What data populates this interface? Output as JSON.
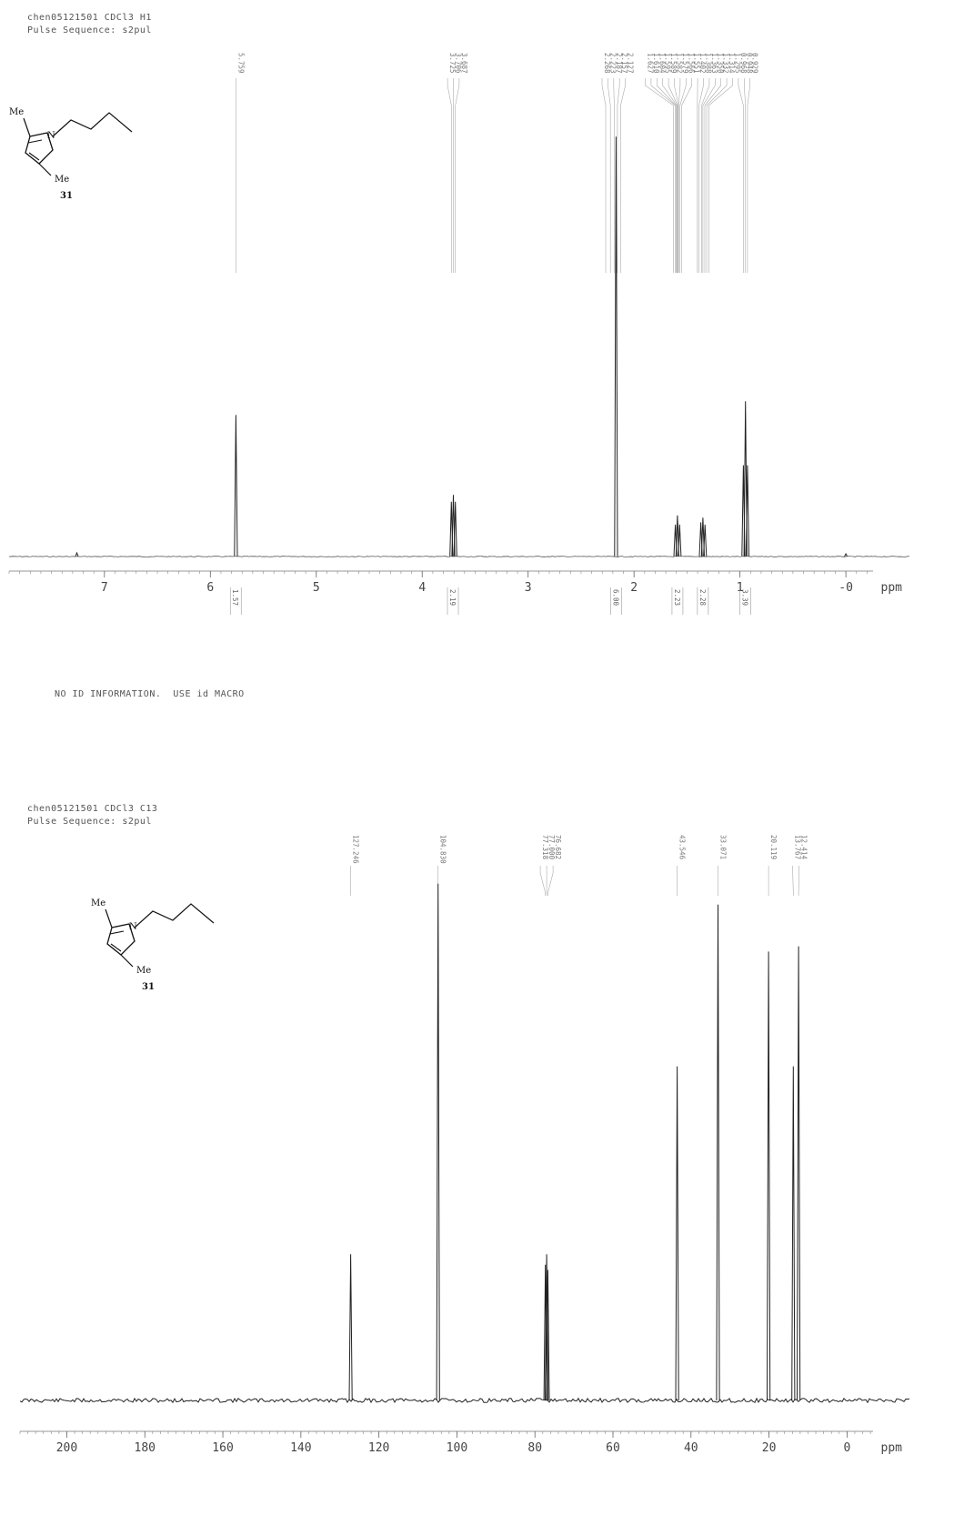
{
  "chart_data": [
    {
      "type": "line",
      "header": {
        "sample_line": "chen05121501 CDCl3 H1",
        "pulse_line": "Pulse Sequence: s2pul"
      },
      "xlabel": "ppm",
      "xlim": [
        7.9,
        -0.6
      ],
      "x_ticks": [
        "7",
        "6",
        "5",
        "4",
        "3",
        "2",
        "1",
        "-0"
      ],
      "x_tick_values": [
        7,
        6,
        5,
        4,
        3,
        2,
        1,
        0
      ],
      "peak_labels": [
        "5.759",
        "3.725",
        "3.706",
        "3.687",
        "2.268",
        "2.223",
        "2.187",
        "2.157",
        "2.127",
        "1.627",
        "1.610",
        "1.604",
        "1.595",
        "1.589",
        "1.582",
        "1.579",
        "1.566",
        "1.551",
        "1.402",
        "1.388",
        "1.363",
        "1.350",
        "1.332",
        "1.314",
        "1.295",
        "0.968",
        "0.948",
        "0.929"
      ],
      "integrals": [
        {
          "x": 5.76,
          "label": "1.57"
        },
        {
          "x": 3.71,
          "label": "2.19"
        },
        {
          "x": 2.17,
          "label": "6.00"
        },
        {
          "x": 1.59,
          "label": "2.23"
        },
        {
          "x": 1.35,
          "label": "2.28"
        },
        {
          "x": 0.95,
          "label": "3.39"
        }
      ],
      "peaks": [
        {
          "x": 7.26,
          "h": 0.008
        },
        {
          "x": 5.759,
          "h": 0.31
        },
        {
          "x": 3.725,
          "h": 0.12
        },
        {
          "x": 3.706,
          "h": 0.135
        },
        {
          "x": 3.687,
          "h": 0.12
        },
        {
          "x": 2.17,
          "h": 0.92
        },
        {
          "x": 1.61,
          "h": 0.07
        },
        {
          "x": 1.59,
          "h": 0.09
        },
        {
          "x": 1.57,
          "h": 0.07
        },
        {
          "x": 1.37,
          "h": 0.075
        },
        {
          "x": 1.35,
          "h": 0.085
        },
        {
          "x": 1.33,
          "h": 0.07
        },
        {
          "x": 0.968,
          "h": 0.2
        },
        {
          "x": 0.948,
          "h": 0.34
        },
        {
          "x": 0.929,
          "h": 0.2
        },
        {
          "x": 0.0,
          "h": 0.006
        }
      ],
      "molecule": {
        "substituent_top": "Me",
        "substituent_bottom": "Me",
        "heteroatom": "N",
        "compound_number": "31"
      },
      "footer_note": "NO ID INFORMATION.  USE id MACRO"
    },
    {
      "type": "line",
      "header": {
        "sample_line": "chen05121501 CDCl3 C13",
        "pulse_line": "Pulse Sequence: s2pul"
      },
      "xlabel": "ppm",
      "xlim": [
        212,
        -16
      ],
      "x_ticks": [
        "200",
        "180",
        "160",
        "140",
        "120",
        "100",
        "80",
        "60",
        "40",
        "20",
        "0"
      ],
      "x_tick_values": [
        200,
        180,
        160,
        140,
        120,
        100,
        80,
        60,
        40,
        20,
        0
      ],
      "peak_labels": [
        "127.246",
        "104.830",
        "77.318",
        "77.000",
        "76.682",
        "43.546",
        "33.071",
        "20.119",
        "13.767",
        "12.414"
      ],
      "peaks": [
        {
          "x": 127.246,
          "h": 0.28
        },
        {
          "x": 104.83,
          "h": 0.99
        },
        {
          "x": 77.318,
          "h": 0.26
        },
        {
          "x": 77.0,
          "h": 0.28
        },
        {
          "x": 76.682,
          "h": 0.25
        },
        {
          "x": 43.546,
          "h": 0.64
        },
        {
          "x": 33.071,
          "h": 0.95
        },
        {
          "x": 20.119,
          "h": 0.86
        },
        {
          "x": 13.767,
          "h": 0.64
        },
        {
          "x": 12.414,
          "h": 0.87
        }
      ],
      "molecule": {
        "substituent_top": "Me",
        "substituent_bottom": "Me",
        "heteroatom": "N",
        "compound_number": "31"
      }
    }
  ]
}
